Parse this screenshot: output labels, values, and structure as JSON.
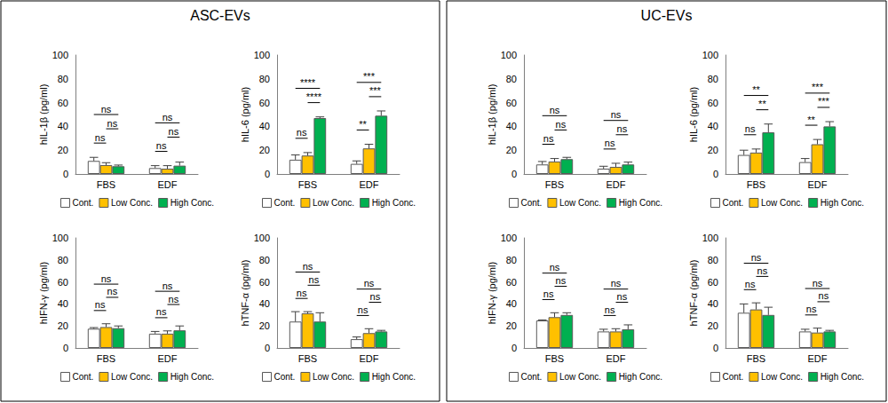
{
  "chart_data": [
    {
      "type": "bar",
      "panel": "ASC-EVs",
      "y_label": "hIL-1β (pg/ml)",
      "categories": [
        "FBS",
        "EDF"
      ],
      "series": [
        {
          "name": "Cont.",
          "color": "#ffffff",
          "values": [
            11,
            5
          ],
          "errors": [
            3,
            2
          ]
        },
        {
          "name": "Low Conc.",
          "color": "#ffc000",
          "values": [
            7.5,
            4.5
          ],
          "errors": [
            2,
            2.5
          ]
        },
        {
          "name": "High Conc.",
          "color": "#00b050",
          "values": [
            6.5,
            7
          ],
          "errors": [
            1,
            3
          ]
        }
      ],
      "ylim": [
        0,
        100
      ],
      "yticks": [
        0,
        20,
        40,
        60,
        80,
        100
      ],
      "grid": false,
      "legend": "bottom",
      "annotations": [
        {
          "category": "FBS",
          "pair": [
            "Cont.",
            "Low Conc."
          ],
          "text": "ns"
        },
        {
          "category": "FBS",
          "pair": [
            "Low Conc.",
            "High Conc."
          ],
          "text": "ns"
        },
        {
          "category": "FBS",
          "pair": [
            "Cont.",
            "High Conc."
          ],
          "text": "ns"
        },
        {
          "category": "EDF",
          "pair": [
            "Cont.",
            "Low Conc."
          ],
          "text": "ns"
        },
        {
          "category": "EDF",
          "pair": [
            "Low Conc.",
            "High Conc."
          ],
          "text": "ns"
        },
        {
          "category": "EDF",
          "pair": [
            "Cont.",
            "High Conc."
          ],
          "text": "ns"
        }
      ]
    },
    {
      "type": "bar",
      "panel": "ASC-EVs",
      "y_label": "hIL-6 (pg/ml)",
      "categories": [
        "FBS",
        "EDF"
      ],
      "series": [
        {
          "name": "Cont.",
          "color": "#ffffff",
          "values": [
            12,
            8.5
          ],
          "errors": [
            4,
            2.5
          ]
        },
        {
          "name": "Low Conc.",
          "color": "#ffc000",
          "values": [
            15.5,
            21.5
          ],
          "errors": [
            2.5,
            3.5
          ]
        },
        {
          "name": "High Conc.",
          "color": "#00b050",
          "values": [
            47,
            49
          ],
          "errors": [
            1,
            4
          ]
        }
      ],
      "ylim": [
        0,
        100
      ],
      "yticks": [
        0,
        20,
        40,
        60,
        80,
        100
      ],
      "grid": false,
      "legend": "bottom",
      "annotations": [
        {
          "category": "FBS",
          "pair": [
            "Cont.",
            "Low Conc."
          ],
          "text": "ns"
        },
        {
          "category": "FBS",
          "pair": [
            "Low Conc.",
            "High Conc."
          ],
          "text": "****"
        },
        {
          "category": "FBS",
          "pair": [
            "Cont.",
            "High Conc."
          ],
          "text": "****"
        },
        {
          "category": "EDF",
          "pair": [
            "Cont.",
            "Low Conc."
          ],
          "text": "**"
        },
        {
          "category": "EDF",
          "pair": [
            "Low Conc.",
            "High Conc."
          ],
          "text": "***"
        },
        {
          "category": "EDF",
          "pair": [
            "Cont.",
            "High Conc."
          ],
          "text": "***"
        }
      ]
    },
    {
      "type": "bar",
      "panel": "ASC-EVs",
      "y_label": "hIFN-γ (pg/ml)",
      "categories": [
        "FBS",
        "EDF"
      ],
      "series": [
        {
          "name": "Cont.",
          "color": "#ffffff",
          "values": [
            17.5,
            13
          ],
          "errors": [
            1,
            2
          ]
        },
        {
          "name": "Low Conc.",
          "color": "#ffc000",
          "values": [
            19,
            13
          ],
          "errors": [
            3,
            2.5
          ]
        },
        {
          "name": "High Conc.",
          "color": "#00b050",
          "values": [
            18,
            16
          ],
          "errors": [
            2,
            4
          ]
        }
      ],
      "ylim": [
        0,
        100
      ],
      "yticks": [
        0,
        20,
        40,
        60,
        80,
        100
      ],
      "grid": false,
      "legend": "bottom",
      "annotations": [
        {
          "category": "FBS",
          "pair": [
            "Cont.",
            "Low Conc."
          ],
          "text": "ns"
        },
        {
          "category": "FBS",
          "pair": [
            "Low Conc.",
            "High Conc."
          ],
          "text": "ns"
        },
        {
          "category": "FBS",
          "pair": [
            "Cont.",
            "High Conc."
          ],
          "text": "ns"
        },
        {
          "category": "EDF",
          "pair": [
            "Cont.",
            "Low Conc."
          ],
          "text": "ns"
        },
        {
          "category": "EDF",
          "pair": [
            "Low Conc.",
            "High Conc."
          ],
          "text": "ns"
        },
        {
          "category": "EDF",
          "pair": [
            "Cont.",
            "High Conc."
          ],
          "text": "ns"
        }
      ]
    },
    {
      "type": "bar",
      "panel": "ASC-EVs",
      "y_label": "hTNF-α (pg/ml)",
      "categories": [
        "FBS",
        "EDF"
      ],
      "series": [
        {
          "name": "Cont.",
          "color": "#ffffff",
          "values": [
            24,
            8
          ],
          "errors": [
            9,
            2
          ]
        },
        {
          "name": "Low Conc.",
          "color": "#ffc000",
          "values": [
            31.5,
            13.5
          ],
          "errors": [
            1.5,
            4
          ]
        },
        {
          "name": "High Conc.",
          "color": "#00b050",
          "values": [
            24,
            15
          ],
          "errors": [
            8,
            1
          ]
        }
      ],
      "ylim": [
        0,
        100
      ],
      "yticks": [
        0,
        20,
        40,
        60,
        80,
        100
      ],
      "grid": false,
      "legend": "bottom",
      "annotations": [
        {
          "category": "FBS",
          "pair": [
            "Cont.",
            "Low Conc."
          ],
          "text": "ns"
        },
        {
          "category": "FBS",
          "pair": [
            "Low Conc.",
            "High Conc."
          ],
          "text": "ns"
        },
        {
          "category": "FBS",
          "pair": [
            "Cont.",
            "High Conc."
          ],
          "text": "ns"
        },
        {
          "category": "EDF",
          "pair": [
            "Cont.",
            "Low Conc."
          ],
          "text": "ns"
        },
        {
          "category": "EDF",
          "pair": [
            "Low Conc.",
            "High Conc."
          ],
          "text": "ns"
        },
        {
          "category": "EDF",
          "pair": [
            "Cont.",
            "High Conc."
          ],
          "text": "ns"
        }
      ]
    },
    {
      "type": "bar",
      "panel": "UC-EVs",
      "y_label": "hIL-1β (pg/ml)",
      "categories": [
        "FBS",
        "EDF"
      ],
      "series": [
        {
          "name": "Cont.",
          "color": "#ffffff",
          "values": [
            8,
            4.5
          ],
          "errors": [
            2.5,
            2
          ]
        },
        {
          "name": "Low Conc.",
          "color": "#ffc000",
          "values": [
            10.5,
            6
          ],
          "errors": [
            2.5,
            3
          ]
        },
        {
          "name": "High Conc.",
          "color": "#00b050",
          "values": [
            12.5,
            8
          ],
          "errors": [
            1.5,
            2
          ]
        }
      ],
      "ylim": [
        0,
        100
      ],
      "yticks": [
        0,
        20,
        40,
        60,
        80,
        100
      ],
      "grid": false,
      "legend": "bottom",
      "annotations": [
        {
          "category": "FBS",
          "pair": [
            "Cont.",
            "Low Conc."
          ],
          "text": "ns"
        },
        {
          "category": "FBS",
          "pair": [
            "Low Conc.",
            "High Conc."
          ],
          "text": "ns"
        },
        {
          "category": "FBS",
          "pair": [
            "Cont.",
            "High Conc."
          ],
          "text": "ns"
        },
        {
          "category": "EDF",
          "pair": [
            "Cont.",
            "Low Conc."
          ],
          "text": "ns"
        },
        {
          "category": "EDF",
          "pair": [
            "Low Conc.",
            "High Conc."
          ],
          "text": "ns"
        },
        {
          "category": "EDF",
          "pair": [
            "Cont.",
            "High Conc."
          ],
          "text": "ns"
        }
      ]
    },
    {
      "type": "bar",
      "panel": "UC-EVs",
      "y_label": "hIL-6 (pg/ml)",
      "categories": [
        "FBS",
        "EDF"
      ],
      "series": [
        {
          "name": "Cont.",
          "color": "#ffffff",
          "values": [
            16,
            10
          ],
          "errors": [
            4,
            3
          ]
        },
        {
          "name": "Low Conc.",
          "color": "#ffc000",
          "values": [
            18,
            25
          ],
          "errors": [
            3,
            4
          ]
        },
        {
          "name": "High Conc.",
          "color": "#00b050",
          "values": [
            35,
            40
          ],
          "errors": [
            7,
            4
          ]
        }
      ],
      "ylim": [
        0,
        100
      ],
      "yticks": [
        0,
        20,
        40,
        60,
        80,
        100
      ],
      "grid": false,
      "legend": "bottom",
      "annotations": [
        {
          "category": "FBS",
          "pair": [
            "Cont.",
            "Low Conc."
          ],
          "text": "ns"
        },
        {
          "category": "FBS",
          "pair": [
            "Low Conc.",
            "High Conc."
          ],
          "text": "**"
        },
        {
          "category": "FBS",
          "pair": [
            "Cont.",
            "High Conc."
          ],
          "text": "**"
        },
        {
          "category": "EDF",
          "pair": [
            "Cont.",
            "Low Conc."
          ],
          "text": "**"
        },
        {
          "category": "EDF",
          "pair": [
            "Low Conc.",
            "High Conc."
          ],
          "text": "***"
        },
        {
          "category": "EDF",
          "pair": [
            "Cont.",
            "High Conc."
          ],
          "text": "***"
        }
      ]
    },
    {
      "type": "bar",
      "panel": "UC-EVs",
      "y_label": "hIFN-γ (pg/ml)",
      "categories": [
        "FBS",
        "EDF"
      ],
      "series": [
        {
          "name": "Cont.",
          "color": "#ffffff",
          "values": [
            25,
            15
          ],
          "errors": [
            0.5,
            2
          ]
        },
        {
          "name": "Low Conc.",
          "color": "#ffc000",
          "values": [
            28,
            15
          ],
          "errors": [
            4,
            2.5
          ]
        },
        {
          "name": "High Conc.",
          "color": "#00b050",
          "values": [
            30,
            17
          ],
          "errors": [
            2,
            4
          ]
        }
      ],
      "ylim": [
        0,
        100
      ],
      "yticks": [
        0,
        20,
        40,
        60,
        80,
        100
      ],
      "grid": false,
      "legend": "bottom",
      "annotations": [
        {
          "category": "FBS",
          "pair": [
            "Cont.",
            "Low Conc."
          ],
          "text": "ns"
        },
        {
          "category": "FBS",
          "pair": [
            "Low Conc.",
            "High Conc."
          ],
          "text": "ns"
        },
        {
          "category": "FBS",
          "pair": [
            "Cont.",
            "High Conc."
          ],
          "text": "ns"
        },
        {
          "category": "EDF",
          "pair": [
            "Cont.",
            "Low Conc."
          ],
          "text": "ns"
        },
        {
          "category": "EDF",
          "pair": [
            "Low Conc.",
            "High Conc."
          ],
          "text": "ns"
        },
        {
          "category": "EDF",
          "pair": [
            "Cont.",
            "High Conc."
          ],
          "text": "ns"
        }
      ]
    },
    {
      "type": "bar",
      "panel": "UC-EVs",
      "y_label": "hTNF-α (pg/ml)",
      "categories": [
        "FBS",
        "EDF"
      ],
      "series": [
        {
          "name": "Cont.",
          "color": "#ffffff",
          "values": [
            32,
            15
          ],
          "errors": [
            8,
            2
          ]
        },
        {
          "name": "Low Conc.",
          "color": "#ffc000",
          "values": [
            35,
            14
          ],
          "errors": [
            6,
            4
          ]
        },
        {
          "name": "High Conc.",
          "color": "#00b050",
          "values": [
            30,
            15
          ],
          "errors": [
            7,
            1
          ]
        }
      ],
      "ylim": [
        0,
        100
      ],
      "yticks": [
        0,
        20,
        40,
        60,
        80,
        100
      ],
      "grid": false,
      "legend": "bottom",
      "annotations": [
        {
          "category": "FBS",
          "pair": [
            "Cont.",
            "Low Conc."
          ],
          "text": "ns"
        },
        {
          "category": "FBS",
          "pair": [
            "Low Conc.",
            "High Conc."
          ],
          "text": "ns"
        },
        {
          "category": "FBS",
          "pair": [
            "Cont.",
            "High Conc."
          ],
          "text": "ns"
        },
        {
          "category": "EDF",
          "pair": [
            "Cont.",
            "Low Conc."
          ],
          "text": "ns"
        },
        {
          "category": "EDF",
          "pair": [
            "Low Conc.",
            "High Conc."
          ],
          "text": "ns"
        },
        {
          "category": "EDF",
          "pair": [
            "Cont.",
            "High Conc."
          ],
          "text": "ns"
        }
      ]
    }
  ]
}
